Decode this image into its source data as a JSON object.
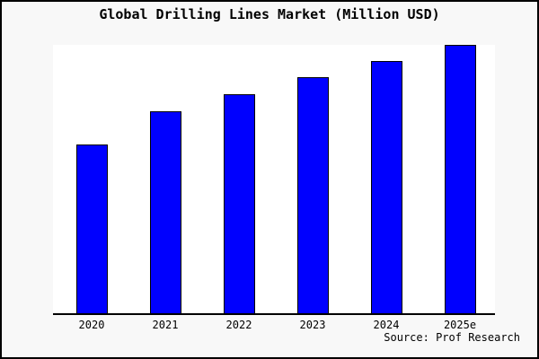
{
  "figure": {
    "title": "Global Drilling Lines Market (Million USD)",
    "source": "Source: Prof Research"
  },
  "colors": {
    "bar_fill": "#0000fe",
    "bar_border": "#000000",
    "page_background": "#f8f8f8",
    "plot_background": "#ffffff",
    "frame_border": "#000000",
    "axis_line": "#000000",
    "text": "#000000"
  },
  "chart_data": {
    "type": "bar",
    "title": "Global Drilling Lines Market (Million USD)",
    "categories": [
      "2020",
      "2021",
      "2022",
      "2023",
      "2024",
      "2025e"
    ],
    "values": [
      62.9,
      75.3,
      81.6,
      88.0,
      94.0,
      100.0
    ],
    "value_units": "relative bar height, % of 2025e bar (no y-axis ticks, gridlines or value labels shown in chart)",
    "xlabel": "",
    "ylabel": "",
    "ylim": [
      0,
      100
    ],
    "grid": false,
    "legend": false,
    "y_axis_shown": false,
    "source": "Source: Prof Research",
    "bar_color": "#0000fe"
  }
}
